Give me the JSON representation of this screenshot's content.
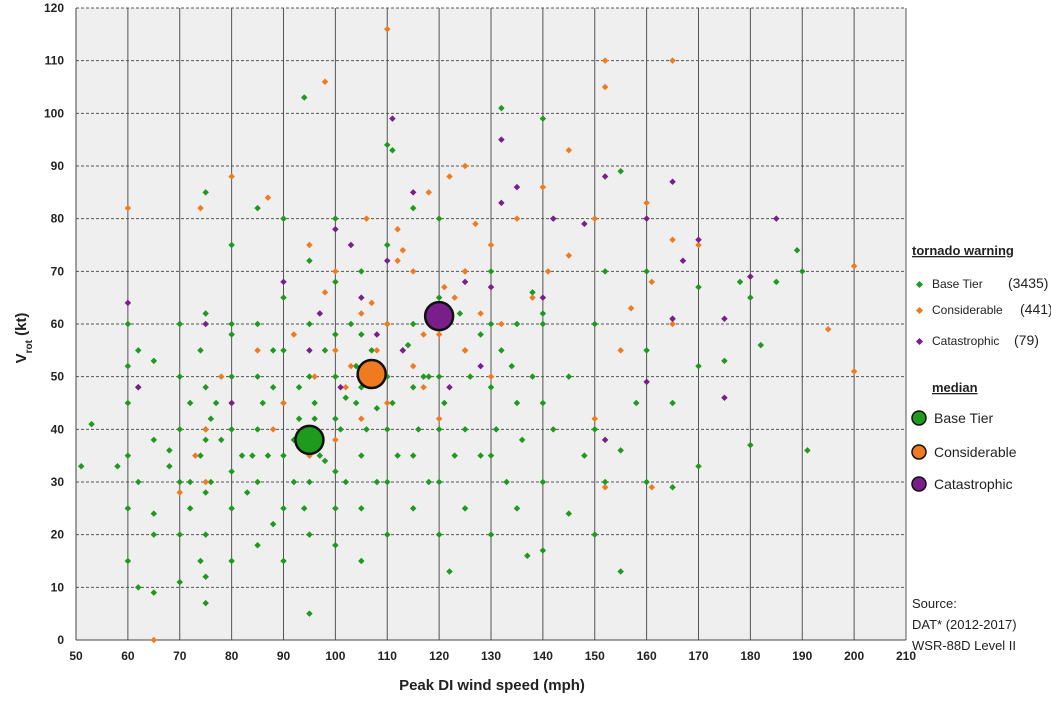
{
  "chart_data": {
    "type": "scatter",
    "xlabel": "Peak DI wind speed (mph)",
    "ylabel_main": "V",
    "ylabel_sub": "rot",
    "ylabel_unit": " (kt)",
    "xlim": [
      50,
      210
    ],
    "ylim": [
      0,
      120
    ],
    "x_ticks": [
      50,
      60,
      70,
      80,
      90,
      100,
      110,
      120,
      130,
      140,
      150,
      160,
      170,
      180,
      190,
      200,
      210
    ],
    "y_ticks": [
      0,
      10,
      20,
      30,
      40,
      50,
      60,
      70,
      80,
      90,
      100,
      110,
      120
    ],
    "grid": true,
    "legend_placement": "right",
    "legend": {
      "warning_title": "tornado warning",
      "median_title": "median",
      "entries": [
        {
          "name": "Base Tier",
          "count": "(3435)"
        },
        {
          "name": "Considerable",
          "count": "(441)"
        },
        {
          "name": "Catastrophic",
          "count": "(79)"
        }
      ],
      "median_entries": [
        "Base Tier",
        "Considerable",
        "Catastrophic"
      ]
    },
    "source_lines": [
      "Source:",
      "DAT* (2012-2017)",
      "WSR-88D Level II"
    ],
    "colors": {
      "base": "#1e9a1e",
      "considerable": "#f07a1f",
      "catastrophic": "#7a1e8c",
      "plot_bg": "#efefef",
      "grid": "#555555"
    },
    "series": [
      {
        "name": "Base Tier",
        "x": [
          51,
          53,
          58,
          60,
          60,
          60,
          60,
          60,
          60,
          62,
          62,
          62,
          65,
          65,
          65,
          65,
          68,
          70,
          70,
          70,
          70,
          70,
          70,
          72,
          72,
          74,
          74,
          74,
          75,
          75,
          75,
          75,
          75,
          75,
          75,
          75,
          76,
          77,
          78,
          80,
          80,
          80,
          80,
          80,
          80,
          80,
          82,
          83,
          85,
          85,
          85,
          85,
          85,
          85,
          86,
          87,
          88,
          88,
          90,
          90,
          90,
          90,
          90,
          90,
          90,
          92,
          93,
          94,
          95,
          95,
          95,
          95,
          95,
          95,
          95,
          96,
          97,
          98,
          100,
          100,
          100,
          100,
          100,
          100,
          100,
          100,
          101,
          102,
          103,
          104,
          105,
          105,
          105,
          105,
          105,
          105,
          106,
          107,
          108,
          110,
          110,
          110,
          110,
          110,
          110,
          110,
          111,
          112,
          113,
          115,
          115,
          115,
          115,
          115,
          116,
          117,
          118,
          120,
          120,
          120,
          120,
          120,
          120,
          121,
          122,
          123,
          125,
          125,
          125,
          125,
          126,
          128,
          130,
          130,
          130,
          130,
          130,
          131,
          132,
          133,
          135,
          135,
          135,
          136,
          137,
          138,
          140,
          140,
          140,
          140,
          140,
          142,
          145,
          145,
          148,
          150,
          150,
          150,
          152,
          152,
          155,
          155,
          158,
          160,
          160,
          160,
          165,
          165,
          165,
          170,
          170,
          170,
          175,
          178,
          180,
          180,
          182,
          185,
          189,
          190,
          191,
          94,
          93,
          111,
          132,
          140,
          155,
          75,
          80,
          65,
          62,
          68,
          72,
          76,
          84,
          88,
          92,
          96,
          98,
          102,
          104,
          108,
          114,
          118,
          124,
          128,
          134,
          138
        ],
        "y": [
          33,
          41,
          33,
          15,
          25,
          35,
          45,
          52,
          60,
          10,
          30,
          55,
          9,
          20,
          38,
          53,
          33,
          11,
          20,
          30,
          40,
          50,
          60,
          25,
          45,
          15,
          35,
          55,
          7,
          12,
          20,
          28,
          38,
          48,
          62,
          85,
          30,
          45,
          38,
          15,
          25,
          32,
          40,
          50,
          60,
          75,
          35,
          28,
          18,
          30,
          40,
          50,
          60,
          82,
          45,
          35,
          22,
          55,
          15,
          25,
          35,
          45,
          55,
          65,
          80,
          30,
          48,
          25,
          5,
          20,
          30,
          40,
          50,
          60,
          72,
          45,
          35,
          55,
          18,
          25,
          32,
          42,
          50,
          58,
          68,
          80,
          40,
          30,
          60,
          45,
          15,
          25,
          35,
          48,
          58,
          70,
          40,
          55,
          30,
          20,
          30,
          40,
          50,
          60,
          75,
          94,
          45,
          35,
          55,
          25,
          35,
          48,
          60,
          82,
          40,
          50,
          30,
          20,
          30,
          40,
          50,
          65,
          80,
          45,
          13,
          35,
          25,
          40,
          55,
          70,
          50,
          35,
          20,
          35,
          48,
          60,
          70,
          40,
          55,
          30,
          25,
          45,
          60,
          38,
          16,
          50,
          17,
          30,
          45,
          60,
          99,
          40,
          24,
          50,
          35,
          20,
          40,
          60,
          30,
          70,
          13,
          89,
          45,
          30,
          55,
          70,
          29,
          45,
          61,
          33,
          52,
          67,
          53,
          68,
          37,
          65,
          56,
          68,
          74,
          70,
          36,
          103,
          42,
          93,
          101,
          62,
          36,
          40,
          58,
          24,
          48,
          36,
          30,
          42,
          35,
          48,
          38,
          42,
          34,
          46,
          52,
          44,
          56,
          50,
          62,
          58,
          52,
          66
        ]
      },
      {
        "name": "Considerable",
        "x": [
          60,
          65,
          70,
          73,
          74,
          75,
          75,
          78,
          80,
          80,
          85,
          87,
          88,
          90,
          92,
          95,
          95,
          96,
          98,
          100,
          100,
          100,
          102,
          105,
          105,
          106,
          108,
          110,
          110,
          110,
          112,
          112,
          115,
          115,
          117,
          118,
          120,
          120,
          122,
          123,
          125,
          125,
          125,
          128,
          130,
          130,
          132,
          135,
          138,
          140,
          141,
          145,
          145,
          150,
          150,
          152,
          152,
          152,
          155,
          157,
          160,
          161,
          161,
          165,
          165,
          165,
          170,
          180,
          195,
          200,
          200,
          98,
          103,
          107,
          113,
          117,
          121,
          127
        ],
        "y": [
          82,
          0,
          28,
          35,
          82,
          40,
          30,
          50,
          88,
          45,
          55,
          84,
          40,
          45,
          58,
          75,
          35,
          50,
          106,
          38,
          55,
          70,
          48,
          42,
          62,
          80,
          55,
          116,
          45,
          60,
          72,
          78,
          52,
          70,
          48,
          85,
          42,
          58,
          88,
          65,
          55,
          70,
          90,
          62,
          50,
          75,
          60,
          80,
          65,
          86,
          70,
          93,
          73,
          80,
          42,
          110,
          105,
          29,
          55,
          63,
          83,
          29,
          68,
          60,
          76,
          110,
          75,
          69,
          59,
          71,
          51,
          66,
          52,
          64,
          74,
          58,
          67,
          79
        ]
      },
      {
        "name": "Catastrophic",
        "x": [
          60,
          62,
          75,
          80,
          90,
          95,
          97,
          100,
          101,
          103,
          105,
          108,
          110,
          111,
          113,
          115,
          118,
          120,
          122,
          125,
          128,
          130,
          132,
          132,
          135,
          140,
          142,
          148,
          152,
          152,
          160,
          160,
          165,
          165,
          167,
          170,
          175,
          175,
          180,
          185
        ],
        "y": [
          64,
          48,
          60,
          45,
          68,
          55,
          62,
          78,
          48,
          75,
          65,
          58,
          72,
          99,
          55,
          85,
          62,
          60,
          48,
          68,
          52,
          67,
          95,
          83,
          86,
          65,
          80,
          79,
          88,
          38,
          80,
          49,
          61,
          87,
          72,
          76,
          46,
          61,
          69,
          80
        ]
      }
    ],
    "medians": [
      {
        "name": "Base Tier",
        "x": 95,
        "y": 38
      },
      {
        "name": "Considerable",
        "x": 107,
        "y": 50.5
      },
      {
        "name": "Catastrophic",
        "x": 120,
        "y": 61.5
      }
    ]
  }
}
